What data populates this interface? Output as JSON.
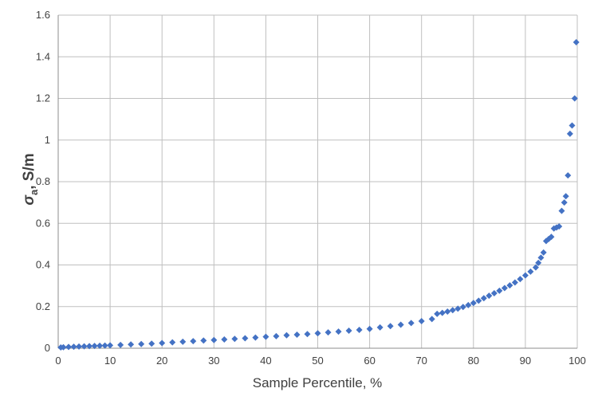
{
  "chart_data": {
    "type": "scatter",
    "title": "",
    "xlabel": "Sample Percentile, %",
    "ylabel_symbol": "σ",
    "ylabel_subscript": "a",
    "ylabel_unit": ", S/m",
    "xlim": [
      0,
      100
    ],
    "ylim": [
      0,
      1.6
    ],
    "xticks": [
      "0",
      "10",
      "20",
      "30",
      "40",
      "50",
      "60",
      "70",
      "80",
      "90",
      "100"
    ],
    "yticks": [
      "0",
      "0.2",
      "0.4",
      "0.6",
      "0.8",
      "1",
      "1.2",
      "1.4",
      "1.6"
    ],
    "grid": true,
    "legend": "none",
    "marker": "diamond",
    "color": "#4472C4",
    "series": [
      {
        "points": [
          [
            0.5,
            0.004
          ],
          [
            1,
            0.005
          ],
          [
            2,
            0.006
          ],
          [
            3,
            0.007
          ],
          [
            4,
            0.008
          ],
          [
            5,
            0.009
          ],
          [
            6,
            0.01
          ],
          [
            7,
            0.011
          ],
          [
            8,
            0.012
          ],
          [
            9,
            0.013
          ],
          [
            10,
            0.014
          ],
          [
            12,
            0.016
          ],
          [
            14,
            0.018
          ],
          [
            16,
            0.02
          ],
          [
            18,
            0.022
          ],
          [
            20,
            0.025
          ],
          [
            22,
            0.028
          ],
          [
            24,
            0.031
          ],
          [
            26,
            0.034
          ],
          [
            28,
            0.037
          ],
          [
            30,
            0.039
          ],
          [
            32,
            0.042
          ],
          [
            34,
            0.045
          ],
          [
            36,
            0.048
          ],
          [
            38,
            0.051
          ],
          [
            40,
            0.055
          ],
          [
            42,
            0.058
          ],
          [
            44,
            0.062
          ],
          [
            46,
            0.065
          ],
          [
            48,
            0.068
          ],
          [
            50,
            0.072
          ],
          [
            52,
            0.076
          ],
          [
            54,
            0.08
          ],
          [
            56,
            0.084
          ],
          [
            58,
            0.088
          ],
          [
            60,
            0.093
          ],
          [
            62,
            0.1
          ],
          [
            64,
            0.106
          ],
          [
            66,
            0.113
          ],
          [
            68,
            0.121
          ],
          [
            70,
            0.13
          ],
          [
            72,
            0.14
          ],
          [
            73,
            0.165
          ],
          [
            74,
            0.17
          ],
          [
            75,
            0.176
          ],
          [
            76,
            0.183
          ],
          [
            77,
            0.19
          ],
          [
            78,
            0.198
          ],
          [
            79,
            0.207
          ],
          [
            80,
            0.217
          ],
          [
            81,
            0.228
          ],
          [
            82,
            0.24
          ],
          [
            83,
            0.252
          ],
          [
            84,
            0.264
          ],
          [
            85,
            0.276
          ],
          [
            86,
            0.289
          ],
          [
            87,
            0.302
          ],
          [
            88,
            0.316
          ],
          [
            89,
            0.332
          ],
          [
            90,
            0.35
          ],
          [
            91,
            0.368
          ],
          [
            92,
            0.388
          ],
          [
            92.5,
            0.41
          ],
          [
            93,
            0.435
          ],
          [
            93.5,
            0.46
          ],
          [
            94,
            0.515
          ],
          [
            94.5,
            0.525
          ],
          [
            95,
            0.535
          ],
          [
            95.5,
            0.575
          ],
          [
            96,
            0.58
          ],
          [
            96.5,
            0.585
          ],
          [
            97,
            0.66
          ],
          [
            97.5,
            0.7
          ],
          [
            97.8,
            0.73
          ],
          [
            98.2,
            0.83
          ],
          [
            98.6,
            1.03
          ],
          [
            99,
            1.07
          ],
          [
            99.5,
            1.2
          ],
          [
            99.8,
            1.47
          ]
        ]
      }
    ]
  }
}
